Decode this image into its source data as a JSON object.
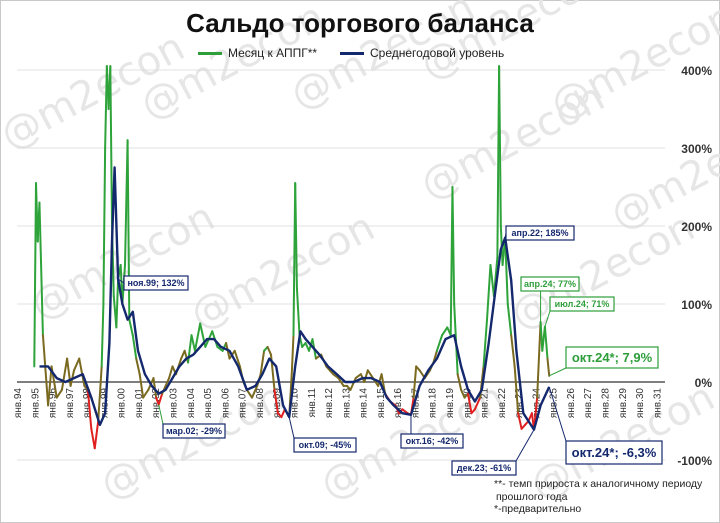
{
  "chart_data": {
    "type": "line",
    "title": "Сальдо торгового баланса",
    "series": [
      {
        "name": "Месяц к АППГ**",
        "color": "#2e9e3a"
      },
      {
        "name": "Среднегодовой уровень",
        "color": "#14286e"
      }
    ],
    "y_ticks": [
      "400%",
      "300%",
      "200%",
      "100%",
      "0%",
      "-100%"
    ],
    "ylim": [
      -100,
      400
    ],
    "x_ticks": [
      "янв.94",
      "янв.95",
      "янв.96",
      "янв.97",
      "янв.98",
      "янв.99",
      "янв.00",
      "янв.01",
      "янв.02",
      "янв.03",
      "янв.04",
      "янв.05",
      "янв.06",
      "янв.07",
      "янв.08",
      "янв.09",
      "янв.10",
      "янв.11",
      "янв.12",
      "янв.13",
      "янв.14",
      "янв.15",
      "янв.16",
      "янв.17",
      "янв.18",
      "янв.19",
      "янв.20",
      "янв.21",
      "янв.22",
      "янв.23",
      "янв.24",
      "янв.25",
      "янв.26",
      "янв.27",
      "янв.28",
      "янв.29",
      "янв.30",
      "янв.31"
    ],
    "monthly_yoy_points": [
      [
        1995.0,
        20
      ],
      [
        1995.1,
        255
      ],
      [
        1995.2,
        180
      ],
      [
        1995.3,
        230
      ],
      [
        1995.5,
        60
      ],
      [
        1995.8,
        -30
      ],
      [
        1996.0,
        20
      ],
      [
        1996.3,
        -20
      ],
      [
        1996.6,
        -10
      ],
      [
        1996.9,
        30
      ],
      [
        1997.1,
        -5
      ],
      [
        1997.3,
        15
      ],
      [
        1997.6,
        30
      ],
      [
        1997.9,
        -5
      ],
      [
        1998.1,
        -10
      ],
      [
        1998.3,
        -60
      ],
      [
        1998.5,
        -85
      ],
      [
        1998.7,
        -50
      ],
      [
        1998.9,
        20
      ],
      [
        1999.0,
        100
      ],
      [
        1999.1,
        300
      ],
      [
        1999.2,
        420
      ],
      [
        1999.3,
        350
      ],
      [
        1999.4,
        420
      ],
      [
        1999.5,
        200
      ],
      [
        1999.6,
        110
      ],
      [
        1999.75,
        70
      ],
      [
        1999.85,
        132
      ],
      [
        2000.0,
        150
      ],
      [
        2000.1,
        100
      ],
      [
        2000.25,
        150
      ],
      [
        2000.4,
        310
      ],
      [
        2000.5,
        80
      ],
      [
        2000.7,
        60
      ],
      [
        2000.9,
        30
      ],
      [
        2001.1,
        10
      ],
      [
        2001.3,
        -20
      ],
      [
        2001.6,
        -10
      ],
      [
        2001.9,
        5
      ],
      [
        2002.05,
        -20
      ],
      [
        2002.2,
        -29
      ],
      [
        2002.4,
        -15
      ],
      [
        2002.6,
        -5
      ],
      [
        2002.8,
        5
      ],
      [
        2003.0,
        20
      ],
      [
        2003.2,
        10
      ],
      [
        2003.5,
        30
      ],
      [
        2003.7,
        40
      ],
      [
        2003.9,
        25
      ],
      [
        2004.1,
        60
      ],
      [
        2004.3,
        40
      ],
      [
        2004.6,
        75
      ],
      [
        2004.9,
        45
      ],
      [
        2005.1,
        55
      ],
      [
        2005.3,
        65
      ],
      [
        2005.6,
        45
      ],
      [
        2005.9,
        40
      ],
      [
        2006.1,
        50
      ],
      [
        2006.3,
        30
      ],
      [
        2006.6,
        40
      ],
      [
        2006.9,
        20
      ],
      [
        2007.1,
        0
      ],
      [
        2007.3,
        -10
      ],
      [
        2007.6,
        -20
      ],
      [
        2007.9,
        -5
      ],
      [
        2008.1,
        10
      ],
      [
        2008.3,
        40
      ],
      [
        2008.5,
        45
      ],
      [
        2008.7,
        35
      ],
      [
        2008.9,
        -10
      ],
      [
        2009.1,
        -40
      ],
      [
        2009.3,
        -45
      ],
      [
        2009.5,
        -35
      ],
      [
        2009.75,
        -45
      ],
      [
        2009.9,
        10
      ],
      [
        2010.0,
        60
      ],
      [
        2010.1,
        255
      ],
      [
        2010.2,
        120
      ],
      [
        2010.35,
        60
      ],
      [
        2010.5,
        45
      ],
      [
        2010.7,
        50
      ],
      [
        2010.9,
        40
      ],
      [
        2011.1,
        55
      ],
      [
        2011.3,
        30
      ],
      [
        2011.6,
        35
      ],
      [
        2011.9,
        20
      ],
      [
        2012.1,
        15
      ],
      [
        2012.3,
        10
      ],
      [
        2012.6,
        5
      ],
      [
        2012.9,
        -5
      ],
      [
        2013.1,
        -5
      ],
      [
        2013.3,
        -10
      ],
      [
        2013.6,
        5
      ],
      [
        2013.9,
        10
      ],
      [
        2014.1,
        0
      ],
      [
        2014.3,
        15
      ],
      [
        2014.6,
        5
      ],
      [
        2014.9,
        -5
      ],
      [
        2015.1,
        10
      ],
      [
        2015.3,
        -15
      ],
      [
        2015.6,
        -25
      ],
      [
        2015.9,
        -30
      ],
      [
        2016.1,
        -40
      ],
      [
        2016.3,
        -35
      ],
      [
        2016.6,
        -40
      ],
      [
        2016.8,
        -42
      ],
      [
        2016.95,
        -20
      ],
      [
        2017.1,
        20
      ],
      [
        2017.3,
        15
      ],
      [
        2017.6,
        5
      ],
      [
        2017.9,
        15
      ],
      [
        2018.1,
        25
      ],
      [
        2018.3,
        40
      ],
      [
        2018.6,
        60
      ],
      [
        2018.9,
        70
      ],
      [
        2019.1,
        60
      ],
      [
        2019.2,
        250
      ],
      [
        2019.3,
        100
      ],
      [
        2019.5,
        10
      ],
      [
        2019.7,
        -10
      ],
      [
        2019.9,
        -20
      ],
      [
        2020.1,
        -15
      ],
      [
        2020.3,
        -40
      ],
      [
        2020.5,
        -35
      ],
      [
        2020.8,
        -20
      ],
      [
        2021.0,
        20
      ],
      [
        2021.2,
        80
      ],
      [
        2021.4,
        150
      ],
      [
        2021.6,
        110
      ],
      [
        2021.8,
        160
      ],
      [
        2021.9,
        420
      ],
      [
        2022.0,
        200
      ],
      [
        2022.1,
        150
      ],
      [
        2022.25,
        185
      ],
      [
        2022.4,
        100
      ],
      [
        2022.6,
        60
      ],
      [
        2022.8,
        20
      ],
      [
        2023.0,
        -40
      ],
      [
        2023.2,
        -60
      ],
      [
        2023.4,
        -55
      ],
      [
        2023.6,
        -50
      ],
      [
        2023.8,
        -40
      ],
      [
        2023.92,
        -61
      ],
      [
        2024.1,
        -20
      ],
      [
        2024.3,
        77
      ],
      [
        2024.4,
        40
      ],
      [
        2024.55,
        71
      ],
      [
        2024.7,
        30
      ],
      [
        2024.8,
        7.9
      ]
    ],
    "annual_avg_points": [
      [
        1995.3,
        20
      ],
      [
        1995.8,
        20
      ],
      [
        1996.3,
        5
      ],
      [
        1996.8,
        0
      ],
      [
        1997.3,
        5
      ],
      [
        1997.8,
        10
      ],
      [
        1998.3,
        -20
      ],
      [
        1998.8,
        -55
      ],
      [
        1999.1,
        -40
      ],
      [
        1999.35,
        50
      ],
      [
        1999.5,
        180
      ],
      [
        1999.65,
        275
      ],
      [
        1999.85,
        132
      ],
      [
        2000.1,
        100
      ],
      [
        2000.4,
        80
      ],
      [
        2000.7,
        90
      ],
      [
        2001.0,
        40
      ],
      [
        2001.4,
        10
      ],
      [
        2001.8,
        -5
      ],
      [
        2002.2,
        -15
      ],
      [
        2002.6,
        -10
      ],
      [
        2003.0,
        5
      ],
      [
        2003.4,
        20
      ],
      [
        2003.8,
        30
      ],
      [
        2004.2,
        35
      ],
      [
        2004.6,
        45
      ],
      [
        2005.0,
        55
      ],
      [
        2005.4,
        55
      ],
      [
        2005.8,
        45
      ],
      [
        2006.3,
        40
      ],
      [
        2006.8,
        20
      ],
      [
        2007.3,
        -10
      ],
      [
        2007.8,
        -5
      ],
      [
        2008.2,
        10
      ],
      [
        2008.6,
        30
      ],
      [
        2009.0,
        20
      ],
      [
        2009.4,
        -30
      ],
      [
        2009.75,
        -45
      ],
      [
        2010.1,
        20
      ],
      [
        2010.4,
        65
      ],
      [
        2010.7,
        55
      ],
      [
        2011.1,
        45
      ],
      [
        2011.5,
        35
      ],
      [
        2012.0,
        20
      ],
      [
        2012.5,
        10
      ],
      [
        2013.0,
        0
      ],
      [
        2013.5,
        0
      ],
      [
        2014.0,
        5
      ],
      [
        2014.5,
        5
      ],
      [
        2015.0,
        0
      ],
      [
        2015.4,
        -20
      ],
      [
        2015.8,
        -30
      ],
      [
        2016.3,
        -40
      ],
      [
        2016.8,
        -42
      ],
      [
        2017.3,
        -5
      ],
      [
        2017.8,
        15
      ],
      [
        2018.3,
        30
      ],
      [
        2018.8,
        55
      ],
      [
        2019.3,
        60
      ],
      [
        2019.7,
        20
      ],
      [
        2020.1,
        -10
      ],
      [
        2020.5,
        -25
      ],
      [
        2020.9,
        -10
      ],
      [
        2021.3,
        50
      ],
      [
        2021.7,
        120
      ],
      [
        2022.0,
        170
      ],
      [
        2022.25,
        185
      ],
      [
        2022.6,
        130
      ],
      [
        2022.9,
        40
      ],
      [
        2023.3,
        -40
      ],
      [
        2023.92,
        -61
      ],
      [
        2024.3,
        -30
      ],
      [
        2024.8,
        -6.3
      ]
    ],
    "annotations": [
      {
        "text": "ноя.99; 132%",
        "x": 1999.85,
        "y": 132,
        "series": 1
      },
      {
        "text": "мар.02; -29%",
        "x": 2002.2,
        "y": -29,
        "series": 0
      },
      {
        "text": "окт.09; -45%",
        "x": 2009.75,
        "y": -45,
        "series": 1
      },
      {
        "text": "окт.16; -42%",
        "x": 2016.8,
        "y": -42,
        "series": 1
      },
      {
        "text": "апр.22; 185%",
        "x": 2022.25,
        "y": 185,
        "series": 1
      },
      {
        "text": "дек.23; -61%",
        "x": 2023.92,
        "y": -61,
        "series": 1
      },
      {
        "text": "апр.24; 77%",
        "x": 2024.3,
        "y": 77,
        "series": 0
      },
      {
        "text": "июл.24; 71%",
        "x": 2024.55,
        "y": 71,
        "series": 0
      },
      {
        "text": "окт.24*; 7,9%",
        "x": 2024.8,
        "y": 7.9,
        "series": 0
      },
      {
        "text": "окт.24*; -6,3%",
        "x": 2024.8,
        "y": -6.3,
        "series": 1
      }
    ],
    "watermark": "@m2econ"
  },
  "footnotes": {
    "line1": "**- темп прироста к аналогичному периоду",
    "line2": "прошлого года",
    "line3": "*-предварительно"
  }
}
